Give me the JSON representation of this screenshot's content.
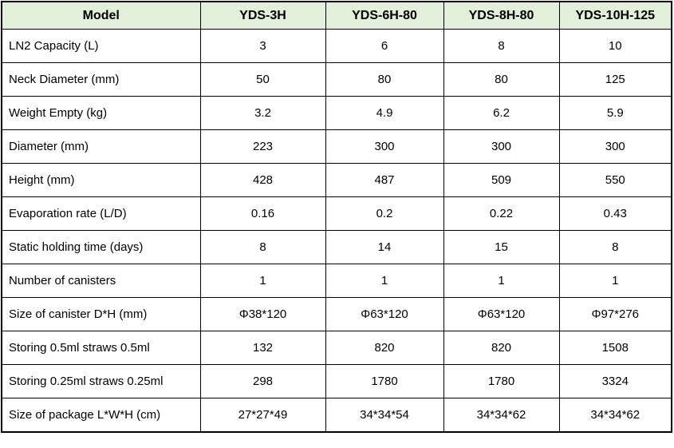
{
  "table": {
    "columns": [
      "Model",
      "YDS-3H",
      "YDS-6H-80",
      "YDS-8H-80",
      "YDS-10H-125"
    ],
    "rows": [
      {
        "label": "LN2 Capacity (L)",
        "values": [
          "3",
          "6",
          "8",
          "10"
        ]
      },
      {
        "label": "Neck Diameter (mm)",
        "values": [
          "50",
          "80",
          "80",
          "125"
        ]
      },
      {
        "label": "Weight Empty (kg)",
        "values": [
          "3.2",
          "4.9",
          "6.2",
          "5.9"
        ]
      },
      {
        "label": "Diameter (mm)",
        "values": [
          "223",
          "300",
          "300",
          "300"
        ]
      },
      {
        "label": "Height (mm)",
        "values": [
          "428",
          "487",
          "509",
          "550"
        ]
      },
      {
        "label": "Evaporation rate (L/D)",
        "values": [
          "0.16",
          "0.2",
          "0.22",
          "0.43"
        ]
      },
      {
        "label": "Static holding time (days)",
        "values": [
          "8",
          "14",
          "15",
          "8"
        ]
      },
      {
        "label": "Number of canisters",
        "values": [
          "1",
          "1",
          "1",
          "1"
        ]
      },
      {
        "label": "Size of canister D*H (mm)",
        "values": [
          "Φ38*120",
          "Φ63*120",
          "Φ63*120",
          "Φ97*276"
        ]
      },
      {
        "label": "Storing 0.5ml straws 0.5ml",
        "values": [
          "132",
          "820",
          "820",
          "1508"
        ]
      },
      {
        "label": "Storing 0.25ml straws 0.25ml",
        "values": [
          "298",
          "1780",
          "1780",
          "3324"
        ]
      },
      {
        "label": "Size of package L*W*H (cm)",
        "values": [
          "27*27*49",
          "34*34*54",
          "34*34*62",
          "34*34*62"
        ]
      }
    ],
    "colors": {
      "header_bg": "#e2efda",
      "border": "#000000",
      "text": "#000000"
    }
  }
}
